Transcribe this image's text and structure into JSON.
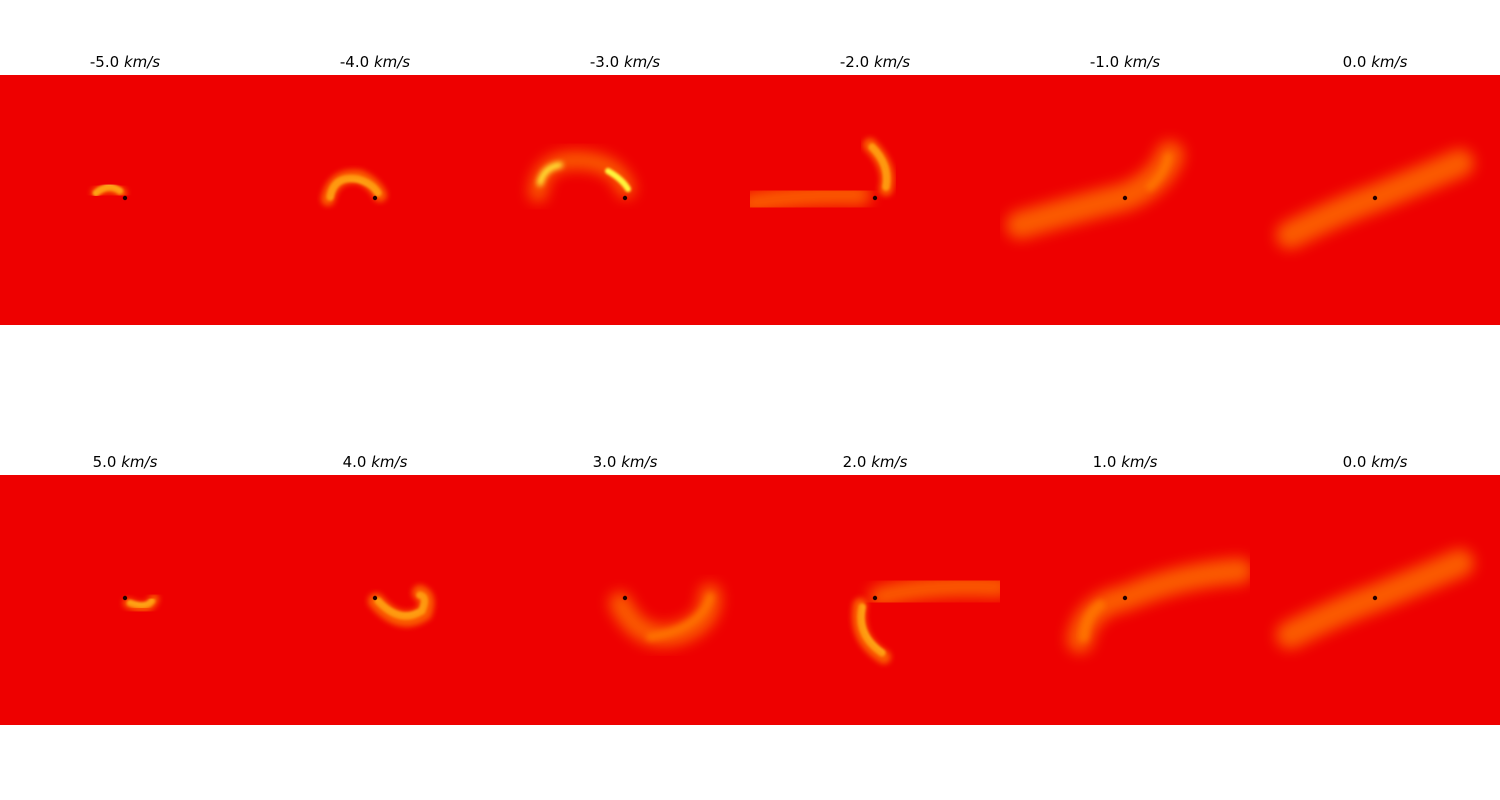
{
  "colors": {
    "background_level": "#ee0000",
    "emission_mid": "#ff7a00",
    "emission_high": "#ffff40",
    "core": "#200000"
  },
  "panels": [
    {
      "row": "top",
      "velocity": "-5.0",
      "unit": "km/s",
      "feature": "small-arc-left"
    },
    {
      "row": "top",
      "velocity": "-4.0",
      "unit": "km/s",
      "feature": "arc-left"
    },
    {
      "row": "top",
      "velocity": "-3.0",
      "unit": "km/s",
      "feature": "large-arc-left"
    },
    {
      "row": "top",
      "velocity": "-2.0",
      "unit": "km/s",
      "feature": "arc-up-right"
    },
    {
      "row": "top",
      "velocity": "-1.0",
      "unit": "km/s",
      "feature": "diagonal-plume"
    },
    {
      "row": "top",
      "velocity": "0.0",
      "unit": "km/s",
      "feature": "diagonal-band"
    },
    {
      "row": "bottom",
      "velocity": "5.0",
      "unit": "km/s",
      "feature": "small-arc-right"
    },
    {
      "row": "bottom",
      "velocity": "4.0",
      "unit": "km/s",
      "feature": "arc-right"
    },
    {
      "row": "bottom",
      "velocity": "3.0",
      "unit": "km/s",
      "feature": "large-arc-right"
    },
    {
      "row": "bottom",
      "velocity": "2.0",
      "unit": "km/s",
      "feature": "arc-down-left"
    },
    {
      "row": "bottom",
      "velocity": "1.0",
      "unit": "km/s",
      "feature": "diagonal-plume-low"
    },
    {
      "row": "bottom",
      "velocity": "0.0",
      "unit": "km/s",
      "feature": "diagonal-band"
    }
  ]
}
